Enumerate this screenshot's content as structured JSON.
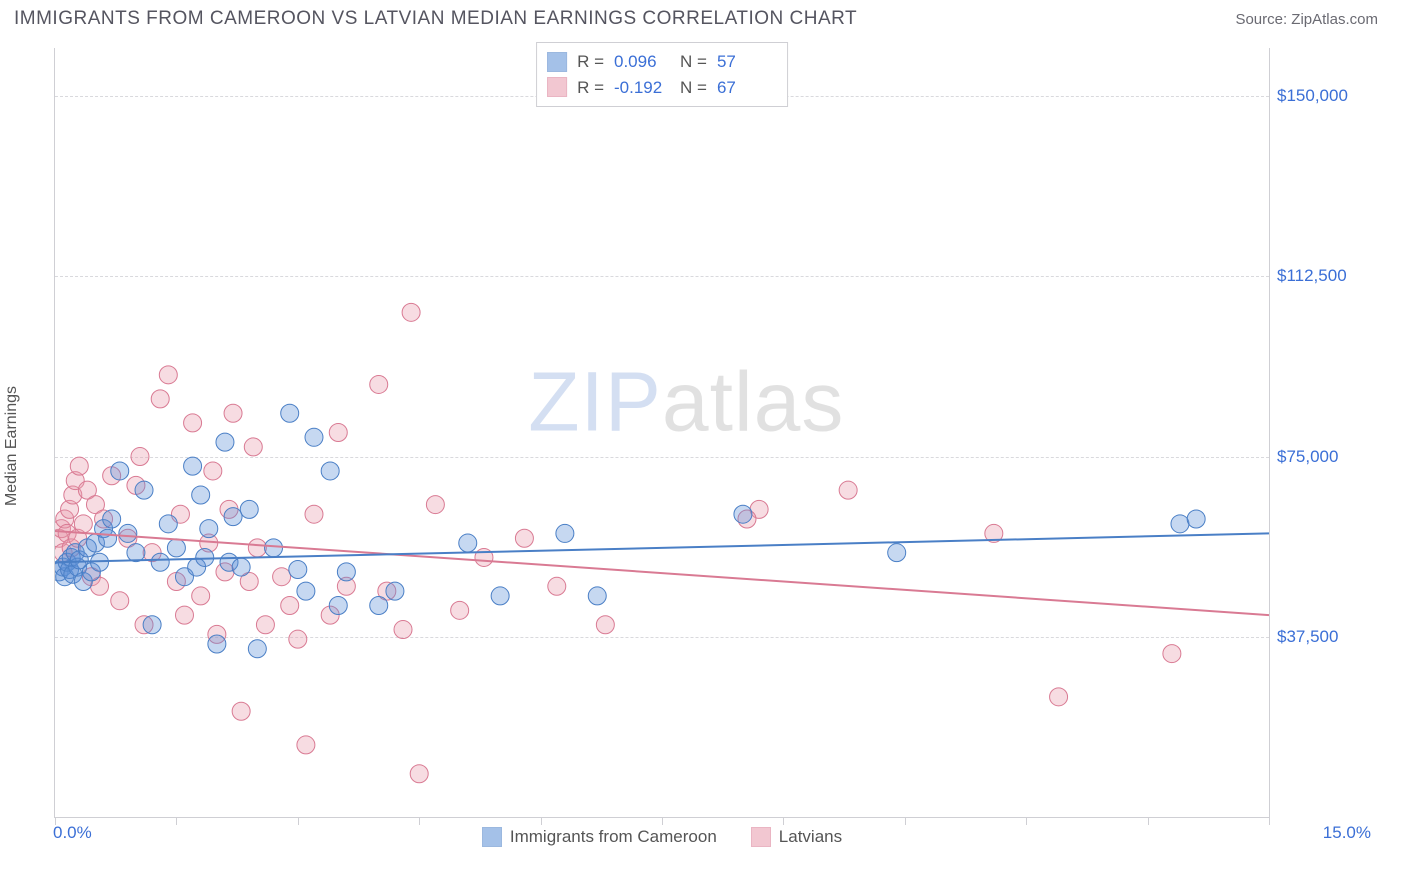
{
  "title": "IMMIGRANTS FROM CAMEROON VS LATVIAN MEDIAN EARNINGS CORRELATION CHART",
  "source": "Source: ZipAtlas.com",
  "y_axis_label": "Median Earnings",
  "watermark": {
    "part1": "ZIP",
    "part2": "atlas"
  },
  "chart": {
    "type": "scatter-correlation",
    "background_color": "#ffffff",
    "grid_color": "#d9d9dd",
    "axis_color": "#cfcfd4",
    "xlim": [
      0,
      15
    ],
    "ylim": [
      0,
      160000
    ],
    "x_ticks": [
      0,
      1.5,
      3,
      4.5,
      6,
      7.5,
      9,
      10.5,
      12,
      13.5,
      15
    ],
    "y_ticks": [
      37500,
      75000,
      112500,
      150000
    ],
    "y_tick_labels": [
      "$37,500",
      "$75,000",
      "$112,500",
      "$150,000"
    ],
    "x_min_label": "0.0%",
    "x_max_label": "15.0%",
    "marker_radius": 9,
    "marker_fill_opacity": 0.35,
    "line_width": 2,
    "series": [
      {
        "name": "Immigrants from Cameroon",
        "color": "#5b8fd6",
        "stroke": "#4a7fc6",
        "R_label": "R =",
        "R": "0.096",
        "N_label": "N =",
        "N": "57",
        "trend": {
          "y_at_xmin": 53000,
          "y_at_xmax": 59000
        },
        "points": [
          [
            0.05,
            51000
          ],
          [
            0.1,
            52000
          ],
          [
            0.12,
            50000
          ],
          [
            0.15,
            53000
          ],
          [
            0.18,
            51500
          ],
          [
            0.2,
            54000
          ],
          [
            0.22,
            50500
          ],
          [
            0.25,
            55000
          ],
          [
            0.28,
            52000
          ],
          [
            0.3,
            53500
          ],
          [
            0.35,
            49000
          ],
          [
            0.4,
            56000
          ],
          [
            0.45,
            51000
          ],
          [
            0.5,
            57000
          ],
          [
            0.55,
            53000
          ],
          [
            0.6,
            60000
          ],
          [
            0.65,
            58000
          ],
          [
            0.7,
            62000
          ],
          [
            0.8,
            72000
          ],
          [
            0.9,
            59000
          ],
          [
            1.0,
            55000
          ],
          [
            1.1,
            68000
          ],
          [
            1.2,
            40000
          ],
          [
            1.3,
            53000
          ],
          [
            1.4,
            61000
          ],
          [
            1.5,
            56000
          ],
          [
            1.6,
            50000
          ],
          [
            1.7,
            73000
          ],
          [
            1.75,
            52000
          ],
          [
            1.8,
            67000
          ],
          [
            1.85,
            54000
          ],
          [
            1.9,
            60000
          ],
          [
            2.0,
            36000
          ],
          [
            2.1,
            78000
          ],
          [
            2.15,
            53000
          ],
          [
            2.2,
            62500
          ],
          [
            2.3,
            52000
          ],
          [
            2.4,
            64000
          ],
          [
            2.5,
            35000
          ],
          [
            2.7,
            56000
          ],
          [
            2.9,
            84000
          ],
          [
            3.0,
            51500
          ],
          [
            3.1,
            47000
          ],
          [
            3.2,
            79000
          ],
          [
            3.4,
            72000
          ],
          [
            3.5,
            44000
          ],
          [
            3.6,
            51000
          ],
          [
            4.0,
            44000
          ],
          [
            4.2,
            47000
          ],
          [
            5.1,
            57000
          ],
          [
            5.5,
            46000
          ],
          [
            6.3,
            59000
          ],
          [
            6.7,
            46000
          ],
          [
            8.5,
            63000
          ],
          [
            10.4,
            55000
          ],
          [
            13.9,
            61000
          ],
          [
            14.1,
            62000
          ]
        ]
      },
      {
        "name": "Latvians",
        "color": "#e89aac",
        "stroke": "#d97a93",
        "R_label": "R =",
        "R": "-0.192",
        "N_label": "N =",
        "N": "67",
        "trend": {
          "y_at_xmin": 59500,
          "y_at_xmax": 42000
        },
        "points": [
          [
            0.05,
            58000
          ],
          [
            0.08,
            60000
          ],
          [
            0.1,
            55000
          ],
          [
            0.12,
            62000
          ],
          [
            0.15,
            59000
          ],
          [
            0.18,
            64000
          ],
          [
            0.2,
            56000
          ],
          [
            0.22,
            67000
          ],
          [
            0.25,
            70000
          ],
          [
            0.28,
            58000
          ],
          [
            0.3,
            73000
          ],
          [
            0.35,
            61000
          ],
          [
            0.4,
            68000
          ],
          [
            0.45,
            50000
          ],
          [
            0.5,
            65000
          ],
          [
            0.55,
            48000
          ],
          [
            0.6,
            62000
          ],
          [
            0.7,
            71000
          ],
          [
            0.8,
            45000
          ],
          [
            0.9,
            58000
          ],
          [
            1.0,
            69000
          ],
          [
            1.05,
            75000
          ],
          [
            1.1,
            40000
          ],
          [
            1.2,
            55000
          ],
          [
            1.3,
            87000
          ],
          [
            1.4,
            92000
          ],
          [
            1.5,
            49000
          ],
          [
            1.55,
            63000
          ],
          [
            1.6,
            42000
          ],
          [
            1.7,
            82000
          ],
          [
            1.8,
            46000
          ],
          [
            1.9,
            57000
          ],
          [
            1.95,
            72000
          ],
          [
            2.0,
            38000
          ],
          [
            2.1,
            51000
          ],
          [
            2.15,
            64000
          ],
          [
            2.2,
            84000
          ],
          [
            2.3,
            22000
          ],
          [
            2.4,
            49000
          ],
          [
            2.45,
            77000
          ],
          [
            2.5,
            56000
          ],
          [
            2.6,
            40000
          ],
          [
            2.8,
            50000
          ],
          [
            2.9,
            44000
          ],
          [
            3.0,
            37000
          ],
          [
            3.1,
            15000
          ],
          [
            3.2,
            63000
          ],
          [
            3.4,
            42000
          ],
          [
            3.5,
            80000
          ],
          [
            3.6,
            48000
          ],
          [
            4.0,
            90000
          ],
          [
            4.1,
            47000
          ],
          [
            4.3,
            39000
          ],
          [
            4.4,
            105000
          ],
          [
            4.5,
            9000
          ],
          [
            4.7,
            65000
          ],
          [
            5.0,
            43000
          ],
          [
            5.3,
            54000
          ],
          [
            5.8,
            58000
          ],
          [
            6.2,
            48000
          ],
          [
            6.8,
            40000
          ],
          [
            8.7,
            64000
          ],
          [
            9.8,
            68000
          ],
          [
            11.6,
            59000
          ],
          [
            12.4,
            25000
          ],
          [
            13.8,
            34000
          ],
          [
            8.55,
            62000
          ]
        ]
      }
    ]
  }
}
